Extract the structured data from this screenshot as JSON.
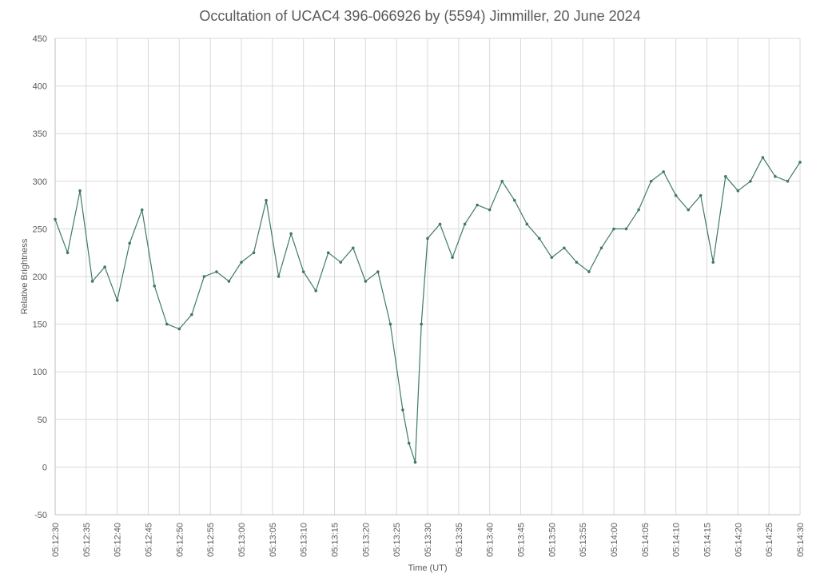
{
  "chart_data": {
    "type": "line",
    "title": "Occultation of UCAC4 396-066926 by (5594) Jimmiller, 20 June 2024",
    "xlabel": "Time (UT)",
    "ylabel": "Relative Brightness",
    "ylim": [
      -50,
      450
    ],
    "yticks": [
      -50,
      0,
      50,
      100,
      150,
      200,
      250,
      300,
      350,
      400,
      450
    ],
    "xlim": [
      "05:12:30",
      "05:14:30"
    ],
    "xticks": [
      "05:12:30",
      "05:12:35",
      "05:12:40",
      "05:12:45",
      "05:12:50",
      "05:12:55",
      "05:13:00",
      "05:13:05",
      "05:13:10",
      "05:13:15",
      "05:13:20",
      "05:13:25",
      "05:13:30",
      "05:13:35",
      "05:13:40",
      "05:13:45",
      "05:13:50",
      "05:13:55",
      "05:14:00",
      "05:14:05",
      "05:14:10",
      "05:14:15",
      "05:14:20",
      "05:14:25",
      "05:14:30"
    ],
    "grid": true,
    "legend": "none",
    "markers": true,
    "series_color": "#3f7a65",
    "series": [
      {
        "x_seconds_after_start": [
          0,
          2,
          4,
          6,
          8,
          10,
          12,
          14,
          16,
          18,
          20,
          22,
          24,
          26,
          28,
          30,
          32,
          34,
          36,
          38,
          40,
          42,
          44,
          46,
          48,
          50,
          52,
          54,
          56,
          57,
          58,
          59,
          60,
          62,
          64,
          66,
          68,
          70,
          72,
          74,
          76,
          78,
          80,
          82,
          84,
          86,
          88,
          90,
          92,
          94,
          96,
          98,
          100,
          102,
          104,
          106,
          108,
          110,
          112,
          114,
          116,
          118,
          120
        ],
        "values": [
          260,
          225,
          290,
          195,
          210,
          175,
          235,
          270,
          190,
          150,
          145,
          160,
          200,
          205,
          195,
          215,
          225,
          280,
          200,
          245,
          205,
          185,
          225,
          215,
          230,
          195,
          205,
          150,
          60,
          25,
          5,
          150,
          240,
          255,
          220,
          255,
          275,
          270,
          300,
          280,
          255,
          240,
          220,
          230,
          215,
          205,
          230,
          250,
          250,
          270,
          300,
          310,
          285,
          270,
          285,
          215,
          305,
          290,
          300,
          325,
          305,
          300,
          320
        ]
      }
    ]
  }
}
